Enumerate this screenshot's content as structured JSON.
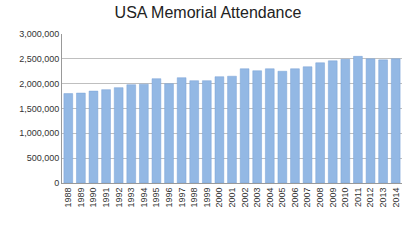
{
  "chart_data": {
    "type": "bar",
    "title": "USA Memorial Attendance",
    "categories": [
      "1988",
      "1989",
      "1990",
      "1991",
      "1992",
      "1993",
      "1994",
      "1995",
      "1996",
      "1997",
      "1998",
      "1999",
      "2000",
      "2001",
      "2002",
      "2003",
      "2004",
      "2005",
      "2006",
      "2007",
      "2008",
      "2009",
      "2010",
      "2011",
      "2012",
      "2013",
      "2014"
    ],
    "values": [
      1800000,
      1810000,
      1850000,
      1880000,
      1920000,
      1980000,
      1990000,
      2100000,
      2000000,
      2120000,
      2060000,
      2060000,
      2140000,
      2150000,
      2300000,
      2260000,
      2300000,
      2250000,
      2300000,
      2340000,
      2420000,
      2460000,
      2490000,
      2550000,
      2500000,
      2480000,
      2500000
    ],
    "color": "#93b8e4",
    "ylim": [
      0,
      3000000
    ],
    "yticks": [
      0,
      {
        "value": 500000,
        "label": "500,000"
      },
      {
        "value": 1000000,
        "label": "1,000,000"
      },
      {
        "value": 1500000,
        "label": "1,500,000"
      },
      {
        "value": 2000000,
        "label": "2,000,000"
      },
      {
        "value": 2500000,
        "label": "2,500,000"
      },
      {
        "value": 3000000,
        "label": "3,000,000"
      }
    ],
    "grid": true
  }
}
